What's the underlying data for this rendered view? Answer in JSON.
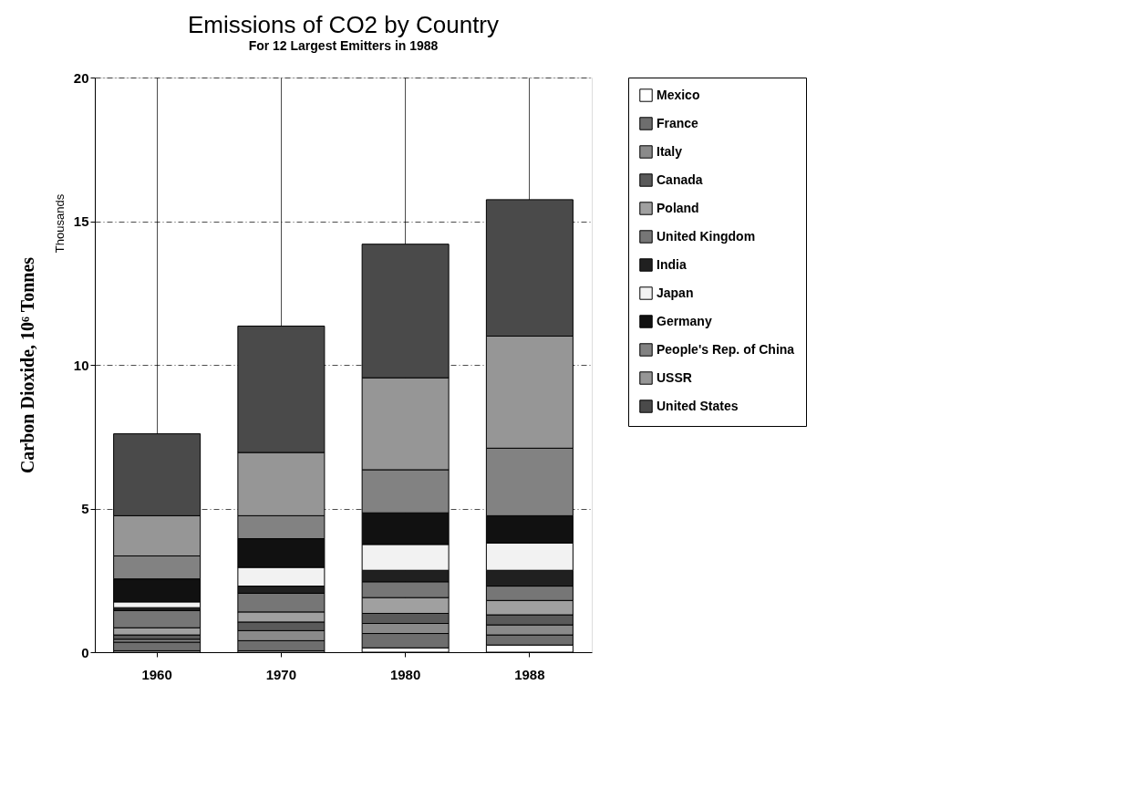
{
  "chart_data": {
    "type": "bar",
    "stacked": true,
    "title": "Emissions of CO2 by Country",
    "subtitle": "For 12 Largest Emitters in 1988",
    "ylabel": "Carbon Dioxide, 10⁶ Tonnes",
    "annotations": [
      "Thousands"
    ],
    "categories": [
      "1960",
      "1970",
      "1980",
      "1988"
    ],
    "ylim": [
      0,
      20
    ],
    "yticks": [
      0,
      5,
      10,
      15,
      20
    ],
    "grid": true,
    "legend": "right",
    "series": [
      {
        "name": "Mexico",
        "color": "#ffffff",
        "values": [
          0.05,
          0.05,
          0.15,
          0.25
        ]
      },
      {
        "name": "France",
        "color": "#6e6e6e",
        "values": [
          0.3,
          0.35,
          0.5,
          0.35
        ]
      },
      {
        "name": "Italy",
        "color": "#8a8a8a",
        "values": [
          0.1,
          0.35,
          0.35,
          0.35
        ]
      },
      {
        "name": "Canada",
        "color": "#5a5a5a",
        "values": [
          0.15,
          0.3,
          0.35,
          0.35
        ]
      },
      {
        "name": "Poland",
        "color": "#a0a0a0",
        "values": [
          0.25,
          0.35,
          0.55,
          0.5
        ]
      },
      {
        "name": "United Kingdom",
        "color": "#767676",
        "values": [
          0.6,
          0.65,
          0.55,
          0.5
        ]
      },
      {
        "name": "India",
        "color": "#202020",
        "values": [
          0.1,
          0.25,
          0.4,
          0.55
        ]
      },
      {
        "name": "Japan",
        "color": "#f2f2f2",
        "values": [
          0.2,
          0.65,
          0.9,
          0.95
        ]
      },
      {
        "name": "Germany",
        "color": "#111111",
        "values": [
          0.8,
          1.0,
          1.1,
          0.95
        ]
      },
      {
        "name": "People's Rep. of China",
        "color": "#828282",
        "values": [
          0.8,
          0.8,
          1.5,
          2.35
        ]
      },
      {
        "name": "USSR",
        "color": "#969696",
        "values": [
          1.4,
          2.2,
          3.2,
          3.9
        ]
      },
      {
        "name": "United States",
        "color": "#4a4a4a",
        "values": [
          2.85,
          4.4,
          4.65,
          4.75
        ]
      }
    ]
  }
}
